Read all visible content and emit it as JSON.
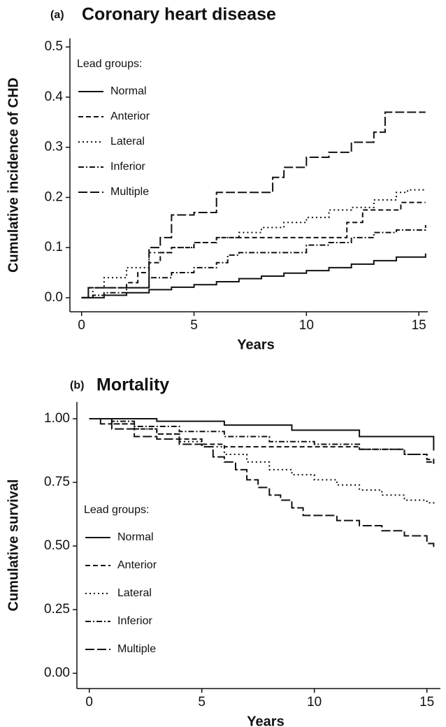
{
  "chart_data": [
    {
      "type": "line",
      "step": true,
      "panel": "(a)",
      "title": "Coronary heart disease",
      "x_label": "Years",
      "y_label": "Cumulative incidence of CHD",
      "legend_title": "Lead groups:",
      "legend_position": "top-left",
      "xlim": [
        -0.52,
        15.4
      ],
      "xticks": [
        0,
        5,
        10,
        15
      ],
      "ylim": [
        -0.028,
        0.517
      ],
      "yticks": [
        {
          "value": 0,
          "label": "0.0"
        },
        {
          "value": 0.1,
          "label": "0.1"
        },
        {
          "value": 0.2,
          "label": "0.2"
        },
        {
          "value": 0.3,
          "label": "0.3"
        },
        {
          "value": 0.4,
          "label": "0.4"
        },
        {
          "value": 0.5,
          "label": "0.5"
        }
      ],
      "series": [
        {
          "name": "Normal",
          "color": "#111111",
          "dash": "none",
          "x": [
            0,
            1,
            2,
            3,
            4,
            5,
            6,
            7,
            8,
            9,
            10,
            11,
            12,
            13,
            14,
            15.3
          ],
          "values": [
            0,
            0.005,
            0.01,
            0.016,
            0.021,
            0.026,
            0.032,
            0.038,
            0.043,
            0.049,
            0.054,
            0.06,
            0.067,
            0.074,
            0.081,
            0.088
          ]
        },
        {
          "name": "Anterior",
          "color": "#111111",
          "dash": "7,4",
          "x": [
            0,
            0.3,
            1,
            2,
            2.5,
            3,
            3.5,
            4,
            5,
            6,
            7,
            8,
            9,
            10,
            11,
            11.8,
            12.5,
            13,
            14.2,
            15.3
          ],
          "values": [
            0,
            0.02,
            0.02,
            0.03,
            0.05,
            0.07,
            0.09,
            0.1,
            0.11,
            0.12,
            0.12,
            0.12,
            0.12,
            0.12,
            0.12,
            0.15,
            0.175,
            0.175,
            0.19,
            0.19
          ]
        },
        {
          "name": "Lateral",
          "color": "#111111",
          "dash": "2,4",
          "x": [
            0,
            0.5,
            1,
            2,
            3,
            4,
            5,
            6,
            7,
            8,
            9,
            10,
            11,
            12,
            13,
            14,
            14.5,
            15.3
          ],
          "values": [
            0,
            0.02,
            0.04,
            0.06,
            0.09,
            0.1,
            0.11,
            0.12,
            0.13,
            0.14,
            0.15,
            0.16,
            0.175,
            0.18,
            0.195,
            0.21,
            0.215,
            0.215
          ]
        },
        {
          "name": "Inferior",
          "color": "#111111",
          "dash": "8,3,2,3",
          "x": [
            0,
            0.5,
            1,
            2,
            3,
            4,
            5,
            6,
            6.5,
            7,
            8,
            9,
            10,
            11,
            12,
            13,
            14,
            15.3
          ],
          "values": [
            0,
            0.005,
            0.01,
            0.02,
            0.04,
            0.05,
            0.06,
            0.07,
            0.085,
            0.09,
            0.09,
            0.09,
            0.105,
            0.11,
            0.12,
            0.13,
            0.135,
            0.145
          ]
        },
        {
          "name": "Multiple",
          "color": "#111111",
          "dash": "13,4",
          "x": [
            0,
            0.3,
            1,
            2,
            3,
            3.5,
            4,
            5,
            6,
            7,
            8,
            8.5,
            9,
            10,
            11,
            12,
            13,
            13.5,
            15.3
          ],
          "values": [
            0,
            0.02,
            0.02,
            0.02,
            0.1,
            0.12,
            0.165,
            0.17,
            0.21,
            0.21,
            0.21,
            0.24,
            0.26,
            0.28,
            0.29,
            0.31,
            0.33,
            0.37,
            0.37
          ]
        }
      ]
    },
    {
      "type": "line",
      "step": true,
      "panel": "(b)",
      "title": "Mortality",
      "x_label": "Years",
      "y_label": "Cumulative survival",
      "legend_title": "Lead groups:",
      "legend_position": "bottom-left",
      "xlim": [
        -0.55,
        15.6
      ],
      "xticks": [
        0,
        5,
        10,
        15
      ],
      "ylim": [
        -0.06,
        1.066
      ],
      "yticks": [
        {
          "value": 0,
          "label": "0.00"
        },
        {
          "value": 0.25,
          "label": "0.25"
        },
        {
          "value": 0.5,
          "label": "0.50"
        },
        {
          "value": 0.75,
          "label": "0.75"
        },
        {
          "value": 1,
          "label": "1.00"
        }
      ],
      "series": [
        {
          "name": "Normal",
          "color": "#111111",
          "dash": "none",
          "x": [
            0,
            3,
            6,
            9,
            12,
            15.3
          ],
          "values": [
            1,
            0.99,
            0.975,
            0.955,
            0.93,
            0.875
          ]
        },
        {
          "name": "Anterior",
          "color": "#111111",
          "dash": "7,4",
          "x": [
            0,
            1,
            2,
            3,
            4,
            5,
            6,
            8,
            10,
            12,
            14,
            15,
            15.3
          ],
          "values": [
            1,
            0.98,
            0.96,
            0.94,
            0.92,
            0.9,
            0.89,
            0.89,
            0.89,
            0.88,
            0.86,
            0.84,
            0.82
          ]
        },
        {
          "name": "Lateral",
          "color": "#111111",
          "dash": "2,4",
          "x": [
            0,
            1,
            2,
            3,
            4,
            5,
            6,
            7,
            8,
            9,
            10,
            11,
            12,
            13,
            14,
            15,
            15.3
          ],
          "values": [
            1,
            0.98,
            0.96,
            0.94,
            0.91,
            0.89,
            0.86,
            0.83,
            0.8,
            0.78,
            0.76,
            0.74,
            0.72,
            0.7,
            0.68,
            0.67,
            0.66
          ]
        },
        {
          "name": "Inferior",
          "color": "#111111",
          "dash": "8,3,2,3",
          "x": [
            0,
            1,
            2,
            4,
            6,
            8,
            10,
            12,
            14,
            15,
            15.3
          ],
          "values": [
            1,
            0.99,
            0.97,
            0.95,
            0.93,
            0.91,
            0.9,
            0.88,
            0.86,
            0.83,
            0.82
          ]
        },
        {
          "name": "Multiple",
          "color": "#111111",
          "dash": "13,4",
          "x": [
            0,
            0.5,
            1,
            2,
            3,
            4,
            5,
            5.5,
            6,
            6.5,
            7,
            7.5,
            8,
            8.5,
            9,
            9.5,
            10,
            11,
            12,
            13,
            14,
            15,
            15.3
          ],
          "values": [
            1,
            0.98,
            0.96,
            0.93,
            0.92,
            0.9,
            0.89,
            0.85,
            0.83,
            0.8,
            0.76,
            0.73,
            0.7,
            0.68,
            0.65,
            0.62,
            0.62,
            0.6,
            0.58,
            0.56,
            0.54,
            0.51,
            0.49
          ]
        }
      ]
    }
  ]
}
